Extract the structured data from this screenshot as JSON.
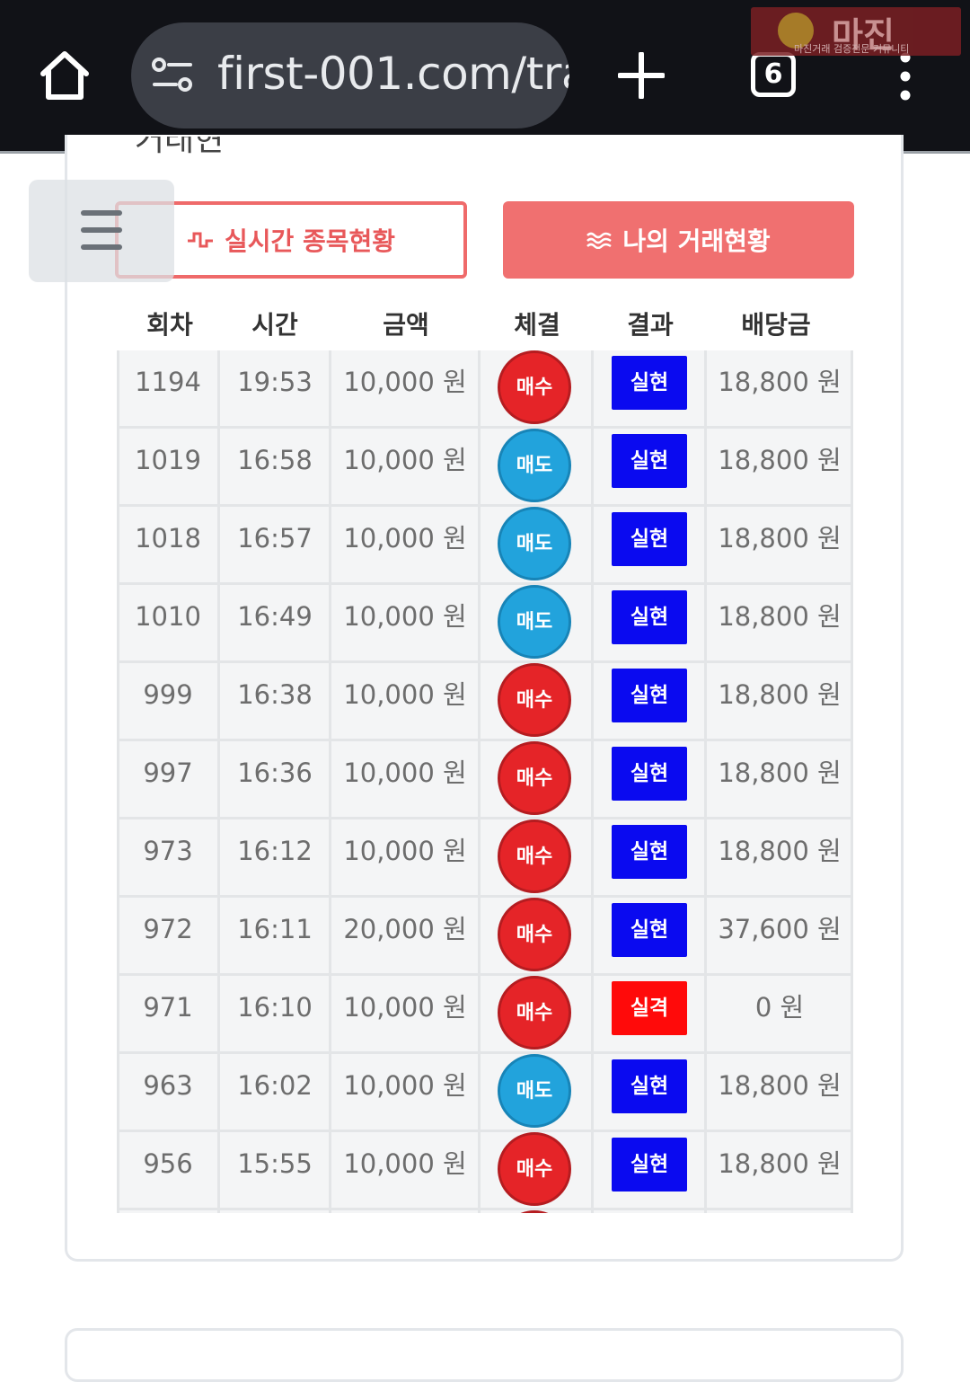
{
  "browser": {
    "url": "first-001.com/tra",
    "tab_count": "6",
    "watermark_title": "마진",
    "watermark_sub": "마진거래 검증전문 커뮤니티"
  },
  "page": {
    "partial_title": "거래현황"
  },
  "buttons": {
    "realtime_label": "실시간 종목현황",
    "mytrades_label": "나의 거래현황"
  },
  "table": {
    "headers": [
      "회차",
      "시간",
      "금액",
      "체결",
      "결과",
      "배당금"
    ],
    "rows": [
      {
        "round": "1194",
        "time": "19:53",
        "amount": "10,000 원",
        "fill": "매수",
        "fill_type": "buy",
        "result": "실현",
        "result_type": "win",
        "payout": "18,800 원"
      },
      {
        "round": "1019",
        "time": "16:58",
        "amount": "10,000 원",
        "fill": "매도",
        "fill_type": "sell",
        "result": "실현",
        "result_type": "win",
        "payout": "18,800 원"
      },
      {
        "round": "1018",
        "time": "16:57",
        "amount": "10,000 원",
        "fill": "매도",
        "fill_type": "sell",
        "result": "실현",
        "result_type": "win",
        "payout": "18,800 원"
      },
      {
        "round": "1010",
        "time": "16:49",
        "amount": "10,000 원",
        "fill": "매도",
        "fill_type": "sell",
        "result": "실현",
        "result_type": "win",
        "payout": "18,800 원"
      },
      {
        "round": "999",
        "time": "16:38",
        "amount": "10,000 원",
        "fill": "매수",
        "fill_type": "buy",
        "result": "실현",
        "result_type": "win",
        "payout": "18,800 원"
      },
      {
        "round": "997",
        "time": "16:36",
        "amount": "10,000 원",
        "fill": "매수",
        "fill_type": "buy",
        "result": "실현",
        "result_type": "win",
        "payout": "18,800 원"
      },
      {
        "round": "973",
        "time": "16:12",
        "amount": "10,000 원",
        "fill": "매수",
        "fill_type": "buy",
        "result": "실현",
        "result_type": "win",
        "payout": "18,800 원"
      },
      {
        "round": "972",
        "time": "16:11",
        "amount": "20,000 원",
        "fill": "매수",
        "fill_type": "buy",
        "result": "실현",
        "result_type": "win",
        "payout": "37,600 원"
      },
      {
        "round": "971",
        "time": "16:10",
        "amount": "10,000 원",
        "fill": "매수",
        "fill_type": "buy",
        "result": "실격",
        "result_type": "lose",
        "payout": "0 원"
      },
      {
        "round": "963",
        "time": "16:02",
        "amount": "10,000 원",
        "fill": "매도",
        "fill_type": "sell",
        "result": "실현",
        "result_type": "win",
        "payout": "18,800 원"
      },
      {
        "round": "956",
        "time": "15:55",
        "amount": "10,000 원",
        "fill": "매수",
        "fill_type": "buy",
        "result": "실현",
        "result_type": "win",
        "payout": "18,800 원"
      },
      {
        "round": "",
        "time": "",
        "amount": "",
        "fill": "",
        "fill_type": "buy",
        "result": "",
        "result_type": "none",
        "payout": ""
      }
    ]
  },
  "colors": {
    "buy": "#e52428",
    "sell": "#22a3dc",
    "win": "#0a0af0",
    "lose": "#ff0a0a",
    "accent": "#f07070"
  }
}
